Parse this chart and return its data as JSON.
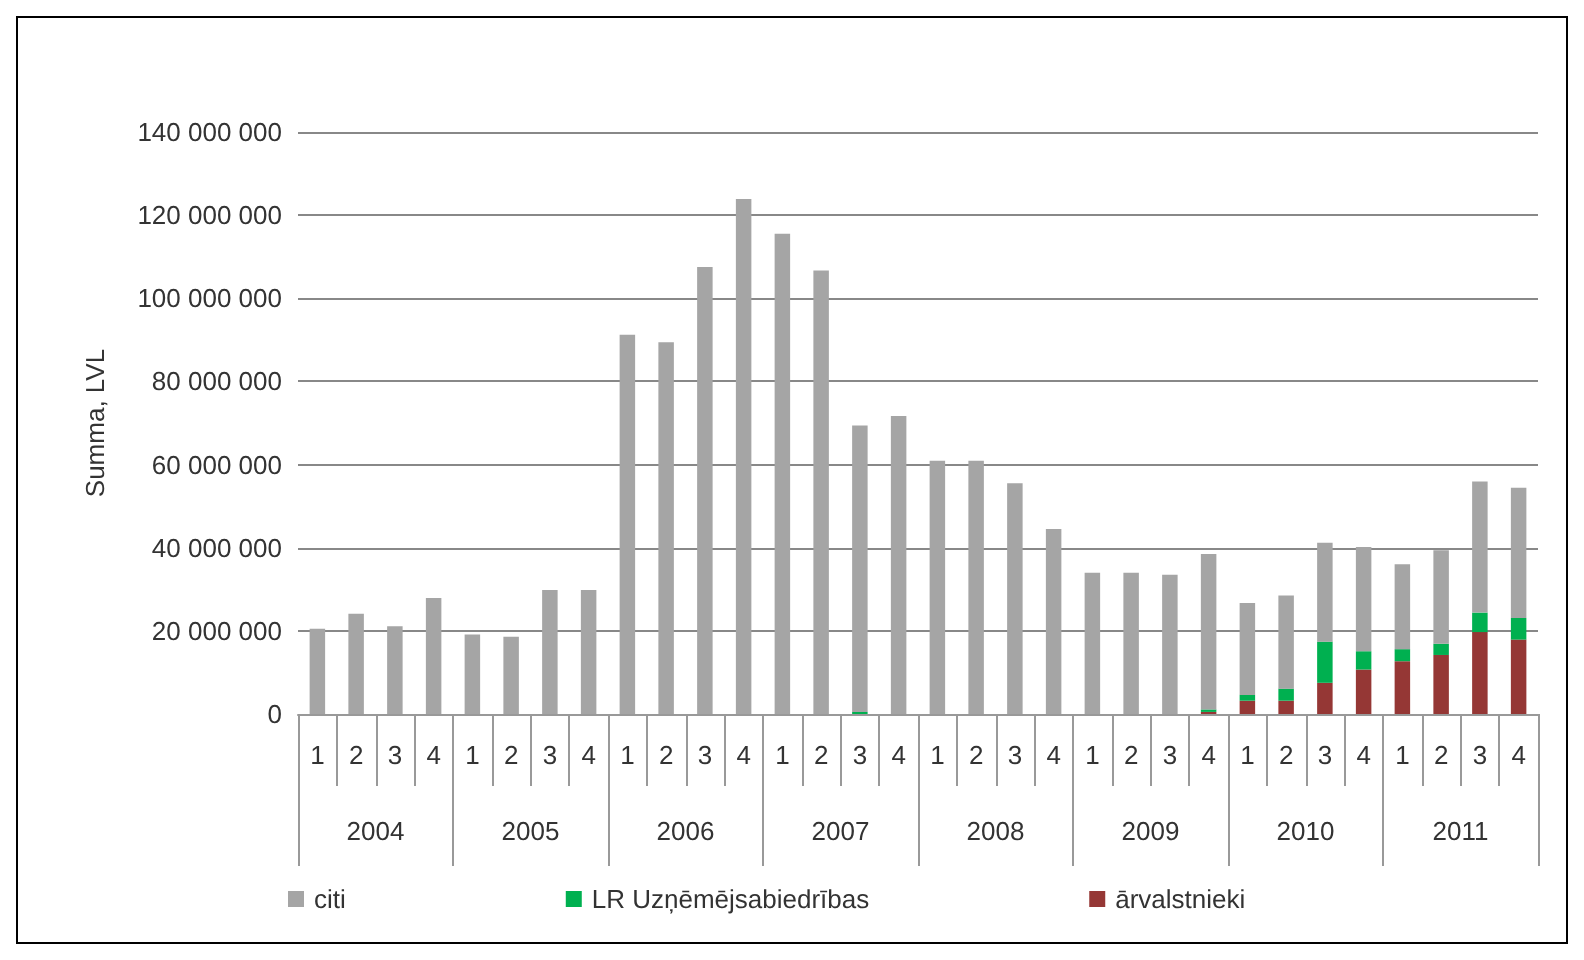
{
  "chart_data": {
    "type": "bar",
    "stacked": true,
    "ylabel": "Summa, LVL",
    "categories": [
      "1",
      "2",
      "3",
      "4",
      "1",
      "2",
      "3",
      "4",
      "1",
      "2",
      "3",
      "4",
      "1",
      "2",
      "3",
      "4",
      "1",
      "2",
      "3",
      "4",
      "1",
      "2",
      "3",
      "4",
      "1",
      "2",
      "3",
      "4",
      "1",
      "2",
      "3",
      "4"
    ],
    "annotations": [
      "2004",
      "2005",
      "2006",
      "2007",
      "2008",
      "2009",
      "2010",
      "2011"
    ],
    "series": [
      {
        "name": "ārvalstnieki",
        "color": "#953735",
        "values": [
          0,
          0,
          0,
          0,
          0,
          0,
          0,
          0,
          0,
          0,
          0,
          0,
          0,
          0,
          0,
          0,
          0,
          0,
          0,
          0,
          0,
          0,
          0,
          500000,
          3200000,
          3200000,
          7500000,
          10700000,
          12700000,
          14200000,
          19700000,
          17900000
        ]
      },
      {
        "name": "LR Uzņēmējsabiedrības",
        "color": "#00b050",
        "values": [
          0,
          0,
          0,
          0,
          0,
          0,
          0,
          0,
          0,
          0,
          0,
          0,
          0,
          0,
          500000,
          0,
          0,
          0,
          0,
          0,
          0,
          0,
          0,
          600000,
          1400000,
          2900000,
          9900000,
          4400000,
          2900000,
          2700000,
          4700000,
          5200000
        ]
      },
      {
        "name": "citi",
        "color": "#a5a5a5",
        "values": [
          20500000,
          24100000,
          21100000,
          27900000,
          19100000,
          18600000,
          29800000,
          29800000,
          91200000,
          89400000,
          107500000,
          123900000,
          115500000,
          106700000,
          68900000,
          71700000,
          60900000,
          60900000,
          55500000,
          44500000,
          34000000,
          34000000,
          33500000,
          37400000,
          22100000,
          22400000,
          23800000,
          25100000,
          20400000,
          22500000,
          31500000,
          31300000
        ]
      }
    ],
    "ylim": [
      0,
      140000000
    ],
    "yticks": [
      0,
      20000000,
      40000000,
      60000000,
      80000000,
      100000000,
      120000000,
      140000000
    ],
    "grid": "y",
    "legend": "bottom left"
  }
}
